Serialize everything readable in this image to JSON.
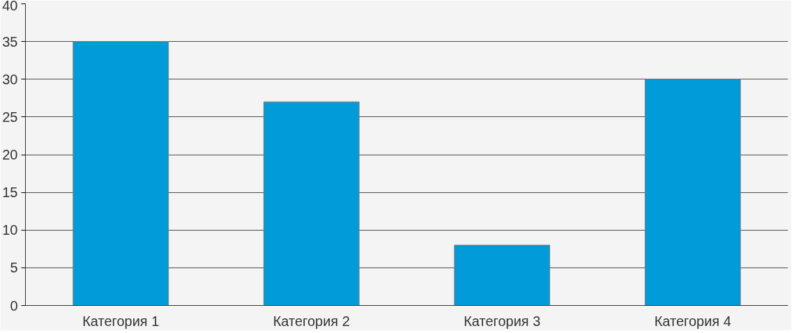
{
  "chart_data": {
    "type": "bar",
    "categories": [
      "Категория 1",
      "Категория 2",
      "Категория 3",
      "Категория 4"
    ],
    "values": [
      35,
      27,
      8,
      30
    ],
    "color": "#009bd8",
    "ylim": [
      0,
      40
    ],
    "yticks": [
      0,
      5,
      10,
      15,
      20,
      25,
      30,
      35,
      40
    ],
    "grid": "y"
  }
}
